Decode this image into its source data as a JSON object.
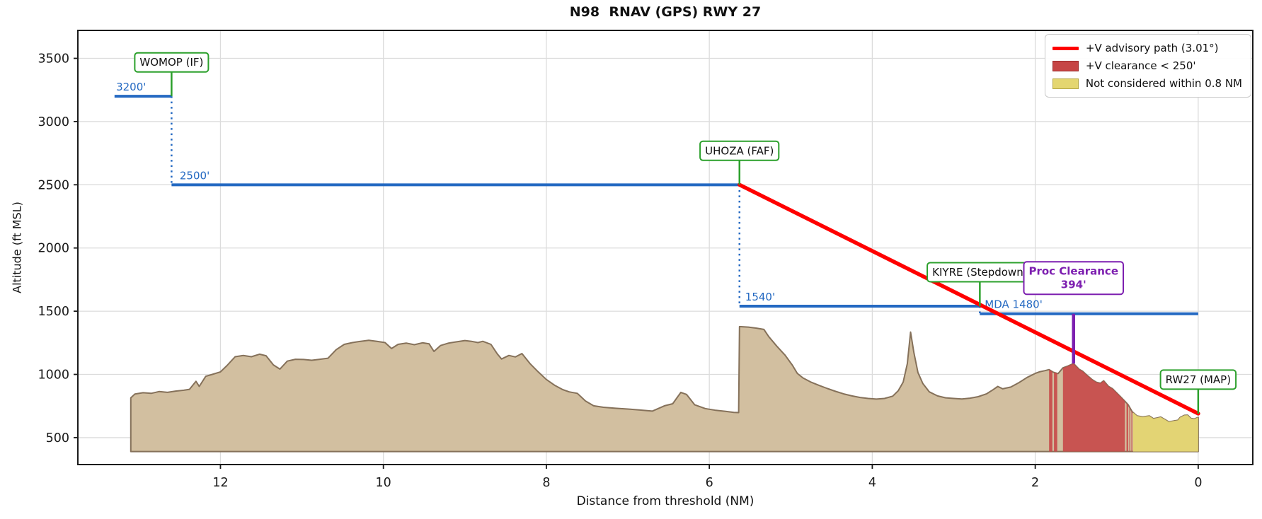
{
  "title": "N98  RNAV (GPS) RWY 27",
  "axes": {
    "xlabel": "Distance from threshold (NM)",
    "ylabel": "Altitude (ft MSL)",
    "xticks": [
      12,
      10,
      8,
      6,
      4,
      2,
      0
    ],
    "yticks": [
      500,
      1000,
      1500,
      2000,
      2500,
      3000,
      3500
    ],
    "xlim": [
      13.75,
      -0.67
    ],
    "ylim": [
      287,
      3721
    ],
    "grid": true
  },
  "legend": {
    "position": "upper right",
    "items": [
      {
        "swatch": "line",
        "color": "#ff0000",
        "label": "+V advisory path (3.01°)"
      },
      {
        "swatch": "box",
        "color": "#c64545",
        "label": "+V clearance < 250'"
      },
      {
        "swatch": "box",
        "color": "#e4d670",
        "label": "Not considered within 0.8 NM"
      }
    ]
  },
  "colors": {
    "segment_blue": "#2469c2",
    "advisory_red": "#ff0000",
    "waypoint_green": "#2ca02c",
    "clearance_purple": "#7d1fb0",
    "terrain_fill": "#d2bfa0",
    "terrain_edge": "#85715a",
    "red_band": "#c64545",
    "yellow_band": "#e4d670",
    "grid": "#dcdcdc",
    "axis": "#1a1a1a",
    "label_text": "#111111"
  },
  "chart_data": {
    "type": "line",
    "title": "N98  RNAV (GPS) RWY 27",
    "xlabel": "Distance from threshold (NM)",
    "ylabel": "Altitude (ft MSL)",
    "x_unit": "NM",
    "y_unit": "ft MSL",
    "x_axis_inverted": true,
    "altitude_segments": [
      {
        "name": "segment-3200",
        "label": "3200'",
        "alt": 3200,
        "from_nm": 13.3,
        "to_nm": 12.6,
        "label_nm": 13.28
      },
      {
        "name": "segment-2500",
        "label": "2500'",
        "alt": 2500,
        "from_nm": 12.6,
        "to_nm": 5.63,
        "label_nm": 12.5
      },
      {
        "name": "segment-1540",
        "label": "1540'",
        "alt": 1540,
        "from_nm": 5.63,
        "to_nm": 2.68,
        "label_nm": 5.56
      },
      {
        "name": "segment-mda",
        "label": "MDA 1480'",
        "alt": 1480,
        "from_nm": 2.68,
        "to_nm": 0.0,
        "label_nm": 2.62
      }
    ],
    "step_connectors": [
      {
        "nm": 12.6,
        "from_alt": 3200,
        "to_alt": 2500
      },
      {
        "nm": 5.63,
        "from_alt": 2500,
        "to_alt": 1540
      },
      {
        "nm": 2.68,
        "from_alt": 1540,
        "to_alt": 1480
      }
    ],
    "advisory_path": {
      "label": "+V advisory path (3.01°)",
      "angle_deg": 3.01,
      "from": [
        5.63,
        2500
      ],
      "to": [
        0.0,
        690
      ]
    },
    "waypoints": [
      {
        "id": "womop",
        "name": "WOMOP (IF)",
        "nm": 12.6,
        "alt": 3200
      },
      {
        "id": "uhoza",
        "name": "UHOZA (FAF)",
        "nm": 5.63,
        "alt": 2500
      },
      {
        "id": "kiyre",
        "name": "KIYRE (Stepdown)",
        "nm": 2.68,
        "alt": 1540
      },
      {
        "id": "rw27",
        "name": "RW27 (MAP)",
        "nm": 0.0,
        "alt": 690
      }
    ],
    "proc_clearance": {
      "label_line1": "Proc Clearance",
      "label_line2": "394'",
      "nm": 1.53,
      "top_alt": 1480,
      "terrain_alt": 1086
    },
    "clearance_bands_nm": [
      [
        1.83,
        1.79
      ],
      [
        1.77,
        1.73
      ],
      [
        1.66,
        0.9
      ],
      [
        0.88,
        0.86
      ],
      [
        0.845,
        0.835
      ],
      [
        0.82,
        0.81
      ]
    ],
    "not_considered_band_nm": [
      0.8,
      0.0
    ],
    "terrain": {
      "base_ft": 390,
      "points": [
        [
          13.1,
          815
        ],
        [
          13.05,
          845
        ],
        [
          12.95,
          855
        ],
        [
          12.85,
          850
        ],
        [
          12.75,
          865
        ],
        [
          12.65,
          858
        ],
        [
          12.55,
          868
        ],
        [
          12.45,
          875
        ],
        [
          12.38,
          882
        ],
        [
          12.3,
          945
        ],
        [
          12.26,
          905
        ],
        [
          12.18,
          985
        ],
        [
          12.1,
          1000
        ],
        [
          12.0,
          1020
        ],
        [
          11.92,
          1070
        ],
        [
          11.82,
          1140
        ],
        [
          11.72,
          1150
        ],
        [
          11.62,
          1140
        ],
        [
          11.52,
          1160
        ],
        [
          11.44,
          1148
        ],
        [
          11.35,
          1075
        ],
        [
          11.27,
          1042
        ],
        [
          11.18,
          1105
        ],
        [
          11.08,
          1120
        ],
        [
          10.98,
          1118
        ],
        [
          10.88,
          1112
        ],
        [
          10.78,
          1120
        ],
        [
          10.68,
          1128
        ],
        [
          10.58,
          1195
        ],
        [
          10.48,
          1238
        ],
        [
          10.38,
          1252
        ],
        [
          10.28,
          1262
        ],
        [
          10.18,
          1270
        ],
        [
          10.08,
          1262
        ],
        [
          9.98,
          1252
        ],
        [
          9.9,
          1205
        ],
        [
          9.82,
          1238
        ],
        [
          9.72,
          1248
        ],
        [
          9.62,
          1235
        ],
        [
          9.52,
          1250
        ],
        [
          9.44,
          1242
        ],
        [
          9.38,
          1182
        ],
        [
          9.3,
          1228
        ],
        [
          9.2,
          1248
        ],
        [
          9.1,
          1258
        ],
        [
          9.0,
          1268
        ],
        [
          8.92,
          1262
        ],
        [
          8.84,
          1252
        ],
        [
          8.78,
          1262
        ],
        [
          8.68,
          1238
        ],
        [
          8.6,
          1160
        ],
        [
          8.55,
          1122
        ],
        [
          8.46,
          1150
        ],
        [
          8.38,
          1138
        ],
        [
          8.3,
          1165
        ],
        [
          8.2,
          1085
        ],
        [
          8.1,
          1020
        ],
        [
          8.0,
          960
        ],
        [
          7.9,
          915
        ],
        [
          7.8,
          880
        ],
        [
          7.72,
          862
        ],
        [
          7.62,
          850
        ],
        [
          7.52,
          790
        ],
        [
          7.42,
          752
        ],
        [
          7.3,
          740
        ],
        [
          7.15,
          732
        ],
        [
          7.0,
          726
        ],
        [
          6.85,
          718
        ],
        [
          6.7,
          710
        ],
        [
          6.55,
          752
        ],
        [
          6.45,
          768
        ],
        [
          6.35,
          858
        ],
        [
          6.28,
          842
        ],
        [
          6.18,
          760
        ],
        [
          6.05,
          730
        ],
        [
          5.92,
          716
        ],
        [
          5.8,
          708
        ],
        [
          5.7,
          700
        ],
        [
          5.64,
          698
        ],
        [
          5.63,
          1378
        ],
        [
          5.52,
          1374
        ],
        [
          5.42,
          1366
        ],
        [
          5.33,
          1356
        ],
        [
          5.27,
          1298
        ],
        [
          5.17,
          1222
        ],
        [
          5.07,
          1152
        ],
        [
          4.98,
          1072
        ],
        [
          4.92,
          1008
        ],
        [
          4.85,
          972
        ],
        [
          4.75,
          938
        ],
        [
          4.65,
          912
        ],
        [
          4.55,
          888
        ],
        [
          4.45,
          866
        ],
        [
          4.35,
          846
        ],
        [
          4.25,
          830
        ],
        [
          4.15,
          818
        ],
        [
          4.05,
          810
        ],
        [
          3.95,
          805
        ],
        [
          3.85,
          810
        ],
        [
          3.75,
          828
        ],
        [
          3.68,
          872
        ],
        [
          3.62,
          940
        ],
        [
          3.57,
          1085
        ],
        [
          3.53,
          1335
        ],
        [
          3.49,
          1175
        ],
        [
          3.44,
          1015
        ],
        [
          3.38,
          928
        ],
        [
          3.3,
          862
        ],
        [
          3.2,
          830
        ],
        [
          3.1,
          815
        ],
        [
          3.0,
          810
        ],
        [
          2.9,
          806
        ],
        [
          2.8,
          812
        ],
        [
          2.7,
          824
        ],
        [
          2.6,
          846
        ],
        [
          2.52,
          878
        ],
        [
          2.46,
          905
        ],
        [
          2.4,
          886
        ],
        [
          2.3,
          900
        ],
        [
          2.2,
          935
        ],
        [
          2.1,
          976
        ],
        [
          2.0,
          1008
        ],
        [
          1.95,
          1020
        ],
        [
          1.88,
          1030
        ],
        [
          1.83,
          1038
        ],
        [
          1.78,
          1018
        ],
        [
          1.72,
          1006
        ],
        [
          1.66,
          1052
        ],
        [
          1.6,
          1066
        ],
        [
          1.53,
          1086
        ],
        [
          1.46,
          1040
        ],
        [
          1.42,
          1026
        ],
        [
          1.35,
          985
        ],
        [
          1.3,
          958
        ],
        [
          1.25,
          938
        ],
        [
          1.2,
          930
        ],
        [
          1.16,
          950
        ],
        [
          1.1,
          905
        ],
        [
          1.05,
          886
        ],
        [
          0.96,
          828
        ],
        [
          0.9,
          788
        ],
        [
          0.86,
          760
        ],
        [
          0.81,
          705
        ],
        [
          0.75,
          672
        ],
        [
          0.68,
          664
        ],
        [
          0.6,
          672
        ],
        [
          0.55,
          650
        ],
        [
          0.5,
          656
        ],
        [
          0.46,
          662
        ],
        [
          0.4,
          640
        ],
        [
          0.36,
          625
        ],
        [
          0.3,
          632
        ],
        [
          0.25,
          637
        ],
        [
          0.22,
          660
        ],
        [
          0.17,
          676
        ],
        [
          0.13,
          678
        ],
        [
          0.09,
          652
        ],
        [
          0.05,
          648
        ],
        [
          0.0,
          660
        ]
      ]
    }
  }
}
